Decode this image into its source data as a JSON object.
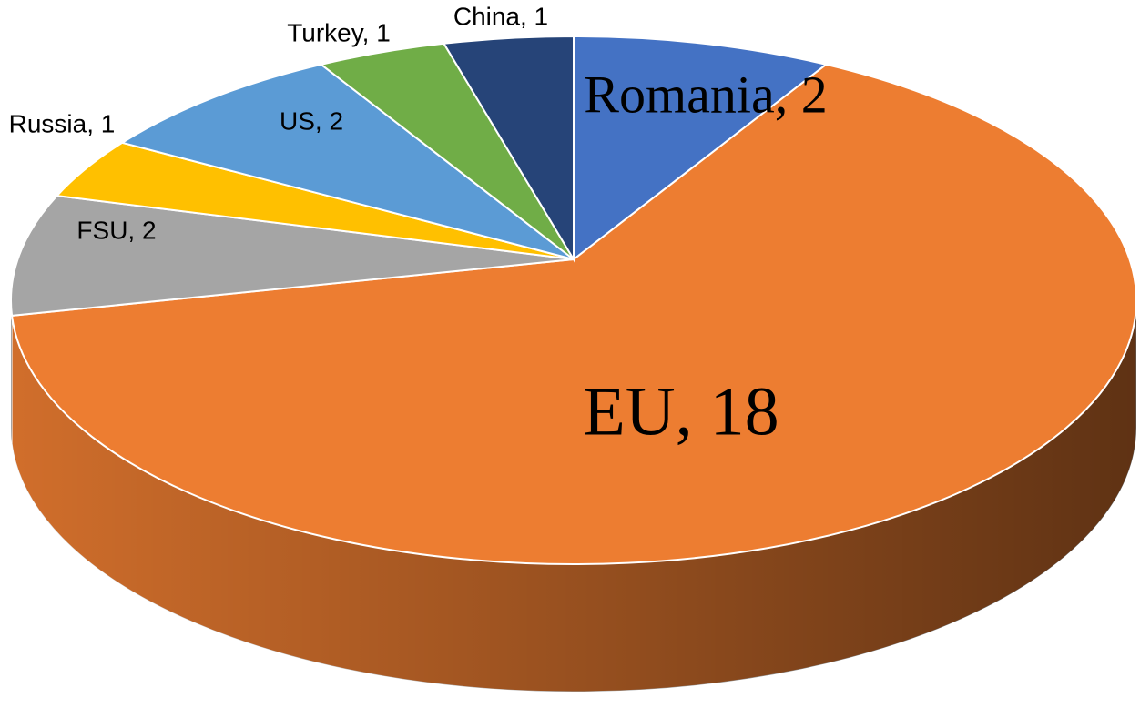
{
  "chart_data": {
    "type": "pie",
    "style": "3d",
    "values": [
      2,
      18,
      2,
      1,
      2,
      1,
      1
    ],
    "value_labels": [
      "Romania, 2",
      "EU, 18",
      "FSU, 2",
      "Russia, 1",
      "US, 2",
      "Turkey, 1",
      "China, 1"
    ],
    "colors": [
      "#4472c4",
      "#ed7d31",
      "#a5a5a5",
      "#ffc000",
      "#5b9bd5",
      "#70ad47",
      "#264478"
    ]
  }
}
